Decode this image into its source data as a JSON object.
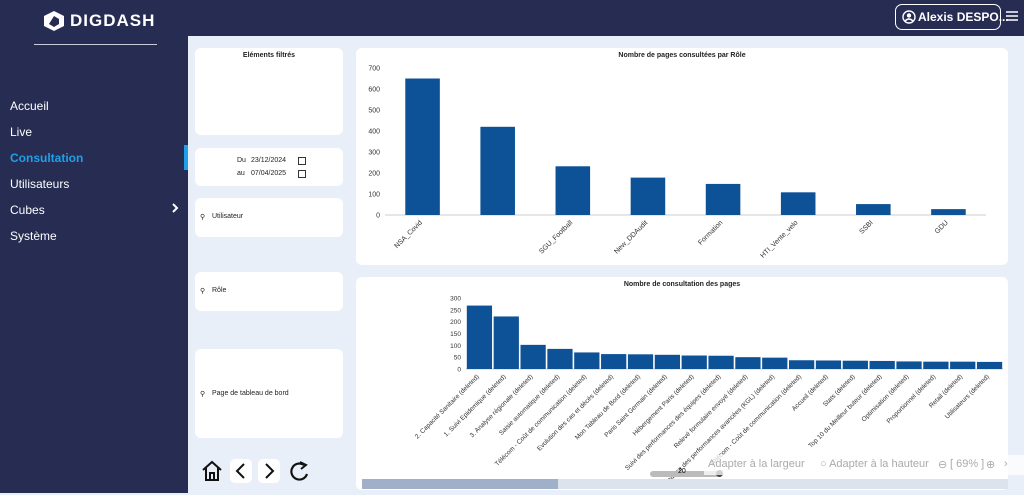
{
  "header": {
    "user": "Alexis DESPO..."
  },
  "sidebar": {
    "logo": "DIGDASH",
    "menu": [
      "Accueil",
      "Live",
      "Consultation",
      "Utilisateurs",
      "Cubes",
      "Système"
    ]
  },
  "filters": {
    "title": "Eléments filtrés",
    "from_label": "Du",
    "from": "23/12/2024",
    "to_label": "au",
    "to": "07/04/2025",
    "searches": [
      "Utilisateur",
      "Rôle",
      "Page de tableau de bord"
    ]
  },
  "charts": [
    {
      "type": "bar",
      "title": "Nombre de pages consultées par Rôle",
      "categories": [
        "NSA_Covid",
        null,
        "SGU_Football",
        "New_DDAudit",
        "Formation",
        "HTI_Vente_velo",
        "SSBI",
        "GDU"
      ],
      "values": [
        650,
        420,
        232,
        178,
        148,
        108,
        52,
        28
      ],
      "color": "#0d5196",
      "ylim": [
        0,
        700
      ],
      "yticks": [
        0,
        100,
        200,
        300,
        400,
        500,
        600,
        700
      ],
      "grid": false
    },
    {
      "type": "bar",
      "title": "Nombre de consultation des pages",
      "categories": [
        "2. Capacité Sanitaire (deleted)",
        "1. Suivi Epidemique (deleted)",
        "3. Analyse régionale (deleted)",
        "Saisie automatique (deleted)",
        "Télécom - Coût de communication (deleted)",
        "Evolution des cas et décès (deleted)",
        "Mon Tableau de Bord (deleted)",
        "Paris Saint Germain (deleted)",
        "Hébergement Paris (deleted)",
        "Suivi des performances des équipes (deleted)",
        "Relevé formulaire envoyé (deleted)",
        "Analyse des performances avancées (KGL) (deleted)",
        "Télécom - Coût de communication (deleted)",
        "Accueil (deleted)",
        "Stats (deleted)",
        "Top 10 du Meilleur buteur (deleted)",
        "Optimisation (deleted)",
        "Proportionnel (deleted)",
        "Retail (deleted)",
        "Utilisateurs (deleted)"
      ],
      "values": [
        268,
        222,
        102,
        85,
        70,
        63,
        62,
        60,
        57,
        56,
        50,
        48,
        37,
        36,
        35,
        34,
        32,
        31,
        31,
        30
      ],
      "color": "#0d5196",
      "ylim": [
        0,
        300
      ],
      "yticks": [
        0,
        50,
        100,
        150,
        200,
        250,
        300
      ],
      "grid": false
    }
  ],
  "page_size": "20",
  "zoom": {
    "fit_width": "Adapter à la largeur",
    "fit_height": "Adapter à la hauteur",
    "level": "[ 69% ]"
  }
}
